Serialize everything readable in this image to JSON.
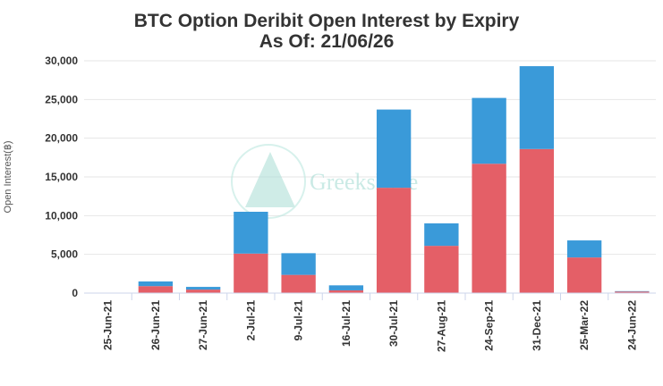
{
  "chart_data": {
    "type": "bar",
    "stacked": true,
    "title": "BTC Option Deribit Open Interest by Expiry",
    "subtitle": "As Of: 21/06/26",
    "xlabel": "",
    "ylabel": "Open Interest(฿)",
    "ylim": [
      0,
      30000
    ],
    "yticks": [
      "0",
      "5,000",
      "10,000",
      "15,000",
      "20,000",
      "25,000",
      "30,000"
    ],
    "grid": true,
    "categories": [
      "25-Jun-21",
      "26-Jun-21",
      "27-Jun-21",
      "2-Jul-21",
      "9-Jul-21",
      "16-Jul-21",
      "30-Jul-21",
      "27-Aug-21",
      "24-Sep-21",
      "31-Dec-21",
      "25-Mar-22",
      "24-Jun-22"
    ],
    "series": [
      {
        "color": "#e45f67",
        "values": [
          0,
          900,
          450,
          5100,
          2350,
          350,
          13600,
          6100,
          16700,
          18600,
          4600,
          200
        ]
      },
      {
        "color": "#3a9ad9",
        "values": [
          0,
          600,
          350,
          5400,
          2800,
          650,
          10100,
          2900,
          8500,
          10700,
          2200,
          50
        ]
      }
    ],
    "watermark": "GreeksLive"
  }
}
